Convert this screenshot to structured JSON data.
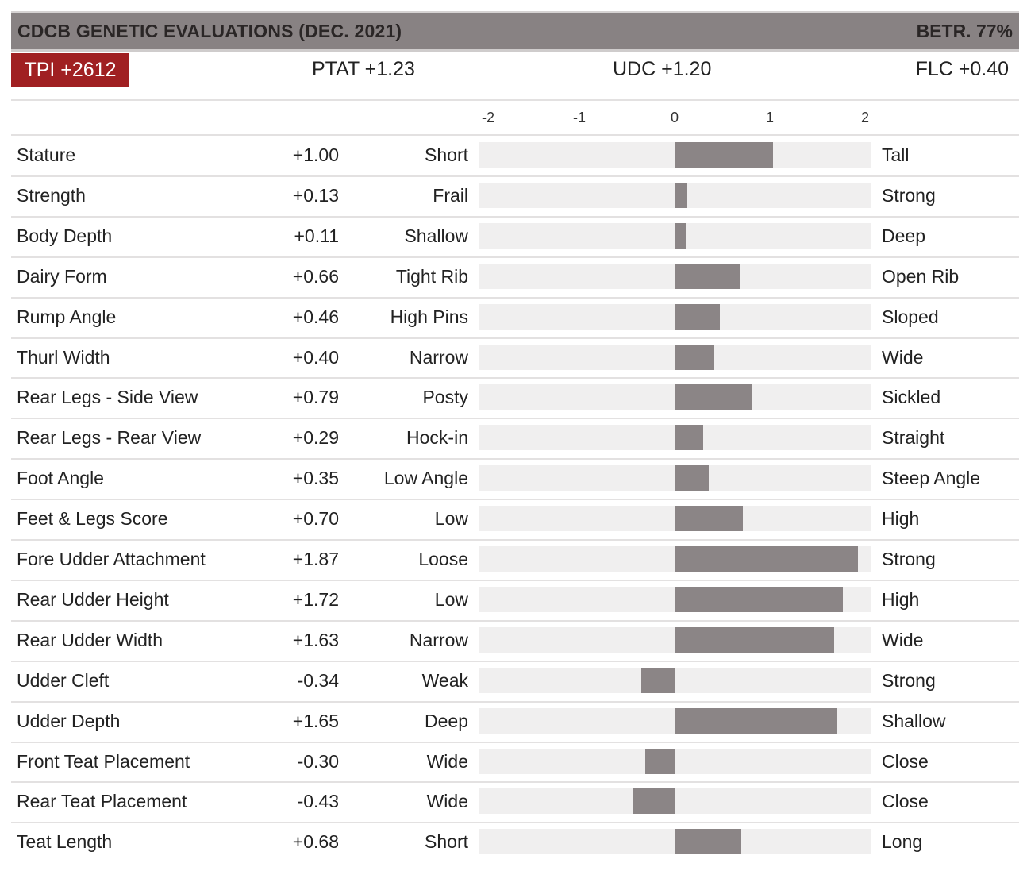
{
  "header": {
    "title": "CDCB GENETIC EVALUATIONS (DEC. 2021)",
    "reliability": "BETR. 77%"
  },
  "summary": {
    "tpi": "TPI +2612",
    "ptat": "PTAT +1.23",
    "udc": "UDC +1.20",
    "flc": "FLC +0.40"
  },
  "colors": {
    "header_bg": "#888283",
    "tpi_badge": "#a02022",
    "bar": "#8b8586",
    "track": "#f0efef"
  },
  "chart_data": {
    "type": "bar",
    "orientation": "horizontal",
    "xlim": [
      -2,
      2
    ],
    "ticks": [
      "-2",
      "-1",
      "0",
      "1",
      "2"
    ],
    "tick_values": [
      -2,
      -1,
      0,
      1,
      2
    ],
    "grid": false,
    "rows": [
      {
        "trait": "Stature",
        "value": 1.0,
        "label": "+1.00",
        "low": "Short",
        "high": "Tall"
      },
      {
        "trait": "Strength",
        "value": 0.13,
        "label": "+0.13",
        "low": "Frail",
        "high": "Strong"
      },
      {
        "trait": "Body Depth",
        "value": 0.11,
        "label": "+0.11",
        "low": "Shallow",
        "high": "Deep"
      },
      {
        "trait": "Dairy Form",
        "value": 0.66,
        "label": "+0.66",
        "low": "Tight Rib",
        "high": "Open Rib"
      },
      {
        "trait": "Rump Angle",
        "value": 0.46,
        "label": "+0.46",
        "low": "High Pins",
        "high": "Sloped"
      },
      {
        "trait": "Thurl Width",
        "value": 0.4,
        "label": "+0.40",
        "low": "Narrow",
        "high": "Wide"
      },
      {
        "trait": "Rear Legs - Side View",
        "value": 0.79,
        "label": "+0.79",
        "low": "Posty",
        "high": "Sickled"
      },
      {
        "trait": "Rear Legs - Rear View",
        "value": 0.29,
        "label": "+0.29",
        "low": "Hock-in",
        "high": "Straight"
      },
      {
        "trait": "Foot Angle",
        "value": 0.35,
        "label": "+0.35",
        "low": "Low Angle",
        "high": "Steep Angle"
      },
      {
        "trait": "Feet & Legs Score",
        "value": 0.7,
        "label": "+0.70",
        "low": "Low",
        "high": "High"
      },
      {
        "trait": "Fore Udder Attachment",
        "value": 1.87,
        "label": "+1.87",
        "low": "Loose",
        "high": "Strong"
      },
      {
        "trait": "Rear Udder Height",
        "value": 1.72,
        "label": "+1.72",
        "low": "Low",
        "high": "High"
      },
      {
        "trait": "Rear Udder Width",
        "value": 1.63,
        "label": "+1.63",
        "low": "Narrow",
        "high": "Wide"
      },
      {
        "trait": "Udder Cleft",
        "value": -0.34,
        "label": "-0.34",
        "low": "Weak",
        "high": "Strong"
      },
      {
        "trait": "Udder Depth",
        "value": 1.65,
        "label": "+1.65",
        "low": "Deep",
        "high": "Shallow"
      },
      {
        "trait": "Front Teat Placement",
        "value": -0.3,
        "label": "-0.30",
        "low": "Wide",
        "high": "Close"
      },
      {
        "trait": "Rear Teat Placement",
        "value": -0.43,
        "label": "-0.43",
        "low": "Wide",
        "high": "Close"
      },
      {
        "trait": "Teat Length",
        "value": 0.68,
        "label": "+0.68",
        "low": "Short",
        "high": "Long"
      }
    ]
  }
}
